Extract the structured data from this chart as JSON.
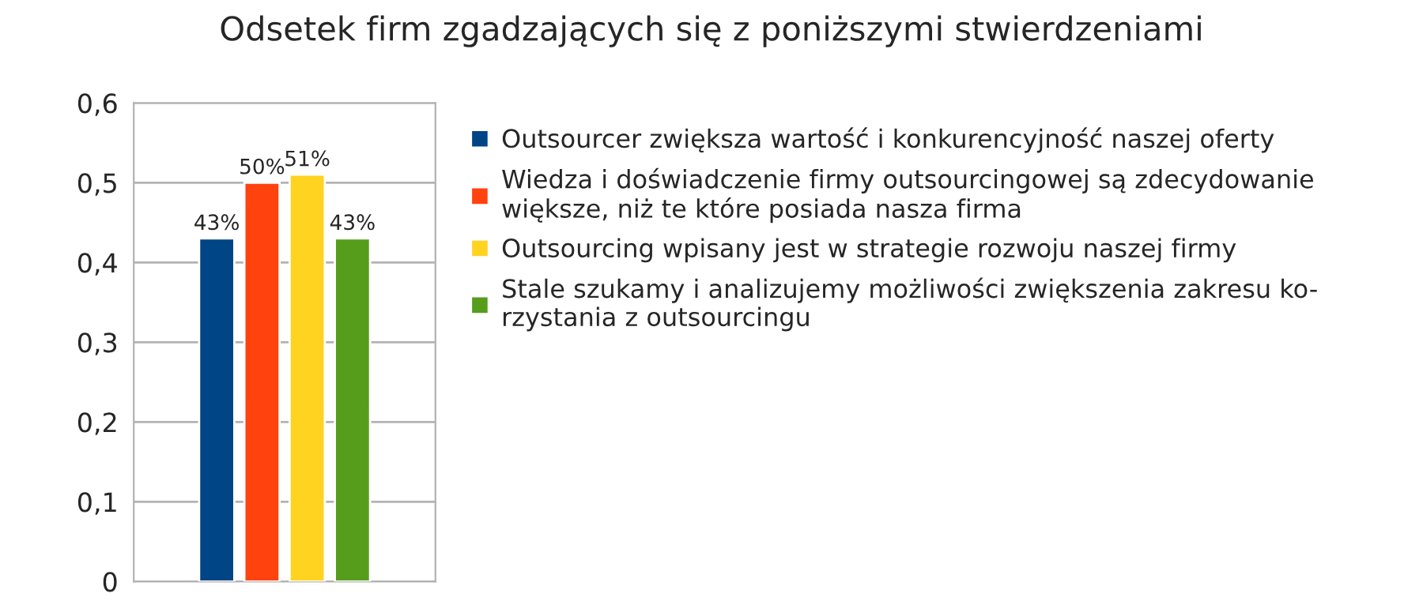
{
  "chart_data": {
    "type": "bar",
    "title": "Odsetek firm zgadzających się z poniższymi stwierdzeniami",
    "categories": [
      null
    ],
    "series": [
      {
        "name": "Outsourcer zwiększa wartość i konkurencyjność naszej oferty",
        "color": "#004586",
        "values": [
          0.43
        ],
        "value_labels": [
          "43%"
        ]
      },
      {
        "name": "Wiedza i doświadczenie firmy outsourcingowej są zdecydowanie\nwiększe, niż te które posiada nasza firma",
        "color": "#ff420e",
        "values": [
          0.5
        ],
        "value_labels": [
          "50%"
        ]
      },
      {
        "name": "Outsourcing wpisany jest w strategie rozwoju naszej firmy",
        "color": "#ffd320",
        "values": [
          0.51
        ],
        "value_labels": [
          "51%"
        ]
      },
      {
        "name": "Stale szukamy i analizujemy możliwości zwiększenia zakresu ko-\nrzystania z outsourcingu",
        "color": "#579d1c",
        "values": [
          0.43
        ],
        "value_labels": [
          "43%"
        ]
      }
    ],
    "ylim": [
      0,
      0.6
    ],
    "yticks": [
      {
        "value": 0,
        "label": "0"
      },
      {
        "value": 0.1,
        "label": "0,1"
      },
      {
        "value": 0.2,
        "label": "0,2"
      },
      {
        "value": 0.3,
        "label": "0,3"
      },
      {
        "value": 0.4,
        "label": "0,4"
      },
      {
        "value": 0.5,
        "label": "0,5"
      },
      {
        "value": 0.6,
        "label": "0,6"
      }
    ],
    "grid": "y",
    "legend": "right"
  }
}
